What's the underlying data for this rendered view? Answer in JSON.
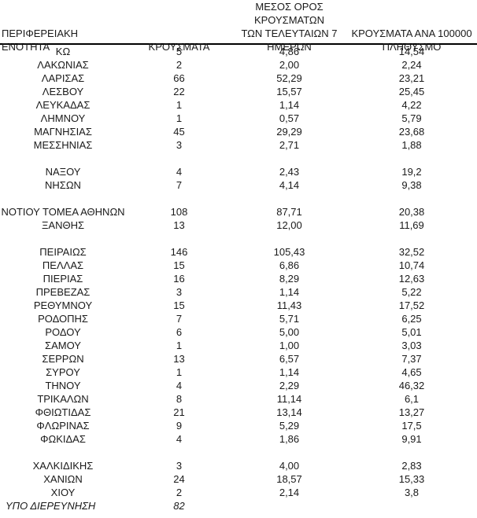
{
  "table": {
    "headers": {
      "region": "ΠΕΡΙΦΕΡΕΙΑΚΗ ΕΝΟΤΗΤΑ",
      "cases": "ΚΡΟΥΣΜΑΤΑ",
      "avg7": "ΜΕΣΟΣ ΟΡΟΣ ΚΡΟΥΣΜΑΤΩΝ\nΤΩΝ ΤΕΛΕΥΤΑΙΩΝ 7\nΗΜΕΡΩΝ",
      "per100k": "ΚΡΟΥΣΜΑΤΑ ΑΝΑ 100000\nΠΛΗΘΥΣΜΟ"
    },
    "rows": [
      {
        "region": "ΚΩ",
        "cases": "5",
        "avg7": "4,86",
        "per100k": "14,54"
      },
      {
        "region": "ΛΑΚΩΝΙΑΣ",
        "cases": "2",
        "avg7": "2,00",
        "per100k": "2,24"
      },
      {
        "region": "ΛΑΡΙΣΑΣ",
        "cases": "66",
        "avg7": "52,29",
        "per100k": "23,21"
      },
      {
        "region": "ΛΕΣΒΟΥ",
        "cases": "22",
        "avg7": "15,57",
        "per100k": "25,45"
      },
      {
        "region": "ΛΕΥΚΑΔΑΣ",
        "cases": "1",
        "avg7": "1,14",
        "per100k": "4,22"
      },
      {
        "region": "ΛΗΜΝΟΥ",
        "cases": "1",
        "avg7": "0,57",
        "per100k": "5,79"
      },
      {
        "region": "ΜΑΓΝΗΣΙΑΣ",
        "cases": "45",
        "avg7": "29,29",
        "per100k": "23,68"
      },
      {
        "region": "ΜΕΣΣΗΝΙΑΣ",
        "cases": "3",
        "avg7": "2,71",
        "per100k": "1,88"
      },
      {
        "spacer": true
      },
      {
        "region": "ΝΑΞΟΥ",
        "cases": "4",
        "avg7": "2,43",
        "per100k": "19,2"
      },
      {
        "region": "ΝΗΣΩΝ",
        "cases": "7",
        "avg7": "4,14",
        "per100k": "9,38"
      },
      {
        "spacer": true
      },
      {
        "region": "ΝΟΤΙΟΥ ΤΟΜΕΑ ΑΘΗΝΩΝ",
        "cases": "108",
        "avg7": "87,71",
        "per100k": "20,38"
      },
      {
        "region": "ΞΑΝΘΗΣ",
        "cases": "13",
        "avg7": "12,00",
        "per100k": "11,69"
      },
      {
        "spacer": true
      },
      {
        "region": "ΠΕΙΡΑΙΩΣ",
        "cases": "146",
        "avg7": "105,43",
        "per100k": "32,52"
      },
      {
        "region": "ΠΕΛΛΑΣ",
        "cases": "15",
        "avg7": "6,86",
        "per100k": "10,74"
      },
      {
        "region": "ΠΙΕΡΙΑΣ",
        "cases": "16",
        "avg7": "8,29",
        "per100k": "12,63"
      },
      {
        "region": "ΠΡΕΒΕΖΑΣ",
        "cases": "3",
        "avg7": "1,14",
        "per100k": "5,22"
      },
      {
        "region": "ΡΕΘΥΜΝΟΥ",
        "cases": "15",
        "avg7": "11,43",
        "per100k": "17,52"
      },
      {
        "region": "ΡΟΔΟΠΗΣ",
        "cases": "7",
        "avg7": "5,71",
        "per100k": "6,25"
      },
      {
        "region": "ΡΟΔΟΥ",
        "cases": "6",
        "avg7": "5,00",
        "per100k": "5,01"
      },
      {
        "region": "ΣΑΜΟΥ",
        "cases": "1",
        "avg7": "1,00",
        "per100k": "3,03"
      },
      {
        "region": "ΣΕΡΡΩΝ",
        "cases": "13",
        "avg7": "6,57",
        "per100k": "7,37"
      },
      {
        "region": "ΣΥΡΟΥ",
        "cases": "1",
        "avg7": "1,14",
        "per100k": "4,65"
      },
      {
        "region": "ΤΗΝΟΥ",
        "cases": "4",
        "avg7": "2,29",
        "per100k": "46,32"
      },
      {
        "region": "ΤΡΙΚΑΛΩΝ",
        "cases": "8",
        "avg7": "11,14",
        "per100k": "6,1"
      },
      {
        "region": "ΦΘΙΩΤΙΔΑΣ",
        "cases": "21",
        "avg7": "13,14",
        "per100k": "13,27"
      },
      {
        "region": "ΦΛΩΡΙΝΑΣ",
        "cases": "9",
        "avg7": "5,29",
        "per100k": "17,5"
      },
      {
        "region": "ΦΩΚΙΔΑΣ",
        "cases": "4",
        "avg7": "1,86",
        "per100k": "9,91"
      },
      {
        "spacer": true
      },
      {
        "region": "ΧΑΛΚΙΔΙΚΗΣ",
        "cases": "3",
        "avg7": "4,00",
        "per100k": "2,83"
      },
      {
        "region": "ΧΑΝΙΩΝ",
        "cases": "24",
        "avg7": "18,57",
        "per100k": "15,33"
      },
      {
        "region": "ΧΙΟΥ",
        "cases": "2",
        "avg7": "2,14",
        "per100k": "3,8"
      },
      {
        "region": "ΥΠΟ ΔΙΕΡΕΥΝΗΣΗ",
        "cases": "82",
        "avg7": "",
        "per100k": "",
        "italic": true
      }
    ]
  }
}
